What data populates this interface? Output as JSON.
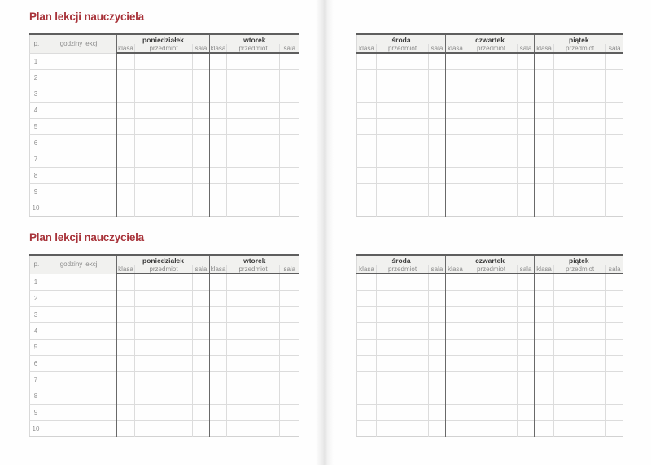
{
  "accent_color": "#a8333a",
  "row_numbers": [
    "1",
    "2",
    "3",
    "4",
    "5",
    "6",
    "7",
    "8",
    "9",
    "10"
  ],
  "left_page": {
    "sections": [
      {
        "title": "Plan lekcji nauczyciela"
      },
      {
        "title": "Plan lekcji nauczyciela"
      }
    ],
    "table": {
      "lp_header": "lp.",
      "hours_header": "godziny lekcji",
      "days": [
        "poniedziałek",
        "wtorek"
      ],
      "sub_columns": [
        "klasa",
        "przedmiot",
        "sala"
      ]
    }
  },
  "right_page": {
    "table": {
      "days": [
        "środa",
        "czwartek",
        "piątek"
      ],
      "sub_columns": [
        "klasa",
        "przedmiot",
        "sala"
      ]
    }
  }
}
